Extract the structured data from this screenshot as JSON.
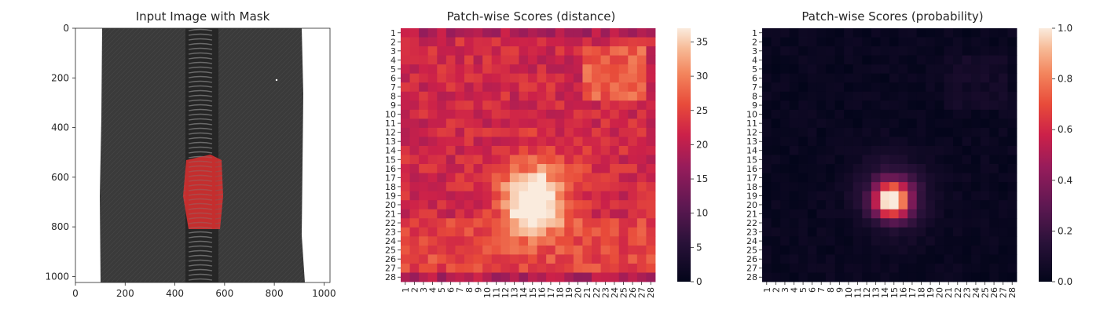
{
  "chart_data": [
    {
      "type": "image",
      "title": "Input Image with Mask",
      "xticks": [
        0,
        200,
        400,
        600,
        800,
        1000
      ],
      "yticks": [
        0,
        200,
        400,
        600,
        800,
        1000
      ],
      "xlim": [
        0,
        1024
      ],
      "ylim": [
        1024,
        0
      ],
      "mask_color": "#e03030"
    },
    {
      "type": "heatmap",
      "title": "Patch-wise Scores (distance)",
      "rows": 28,
      "cols": 28,
      "xticklabels": [
        "1",
        "2",
        "3",
        "4",
        "5",
        "6",
        "7",
        "8",
        "9",
        "10",
        "11",
        "12",
        "13",
        "14",
        "15",
        "16",
        "17",
        "18",
        "19",
        "20",
        "21",
        "22",
        "23",
        "24",
        "25",
        "26",
        "27",
        "28"
      ],
      "yticklabels": [
        "1",
        "2",
        "3",
        "4",
        "5",
        "6",
        "7",
        "8",
        "9",
        "10",
        "11",
        "12",
        "13",
        "14",
        "15",
        "16",
        "17",
        "18",
        "19",
        "20",
        "21",
        "22",
        "23",
        "24",
        "25",
        "26",
        "27",
        "28"
      ],
      "colorbar": {
        "min": 0,
        "max": 37,
        "ticks": [
          0,
          5,
          10,
          15,
          20,
          25,
          30,
          35
        ]
      },
      "colormap": "rocket"
    },
    {
      "type": "heatmap",
      "title": "Patch-wise Scores (probability)",
      "rows": 28,
      "cols": 28,
      "xticklabels": [
        "1",
        "2",
        "3",
        "4",
        "5",
        "6",
        "7",
        "8",
        "9",
        "10",
        "11",
        "12",
        "13",
        "14",
        "15",
        "16",
        "17",
        "18",
        "19",
        "20",
        "21",
        "22",
        "23",
        "24",
        "25",
        "26",
        "27",
        "28"
      ],
      "yticklabels": [
        "1",
        "2",
        "3",
        "4",
        "5",
        "6",
        "7",
        "8",
        "9",
        "10",
        "11",
        "12",
        "13",
        "14",
        "15",
        "16",
        "17",
        "18",
        "19",
        "20",
        "21",
        "22",
        "23",
        "24",
        "25",
        "26",
        "27",
        "28"
      ],
      "colorbar": {
        "min": 0.0,
        "max": 1.0,
        "ticks": [
          "0.0",
          "0.2",
          "0.4",
          "0.6",
          "0.8",
          "1.0"
        ]
      },
      "colormap": "rocket"
    }
  ]
}
